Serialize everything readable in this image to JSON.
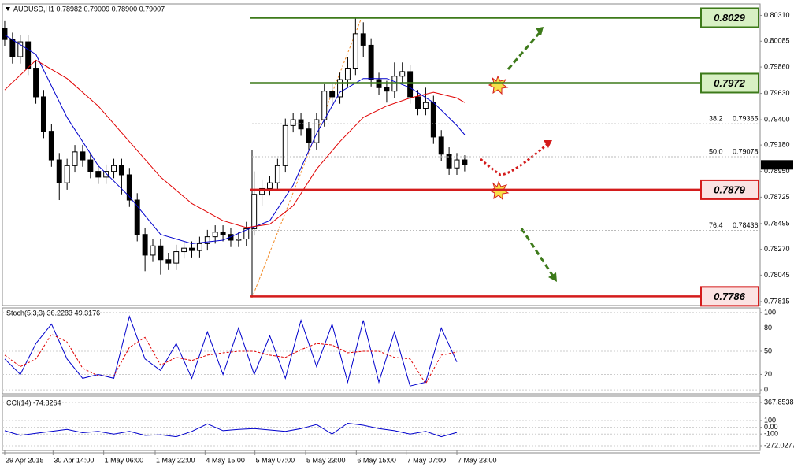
{
  "chart_data": [
    {
      "type": "candlestick",
      "header": "AUDUSD,H1  0.78982 0.79009 0.78900 0.79007",
      "xlim": [
        -0.3,
        96.9
      ],
      "ylim": [
        0.7778,
        0.8041
      ],
      "yticks": [
        {
          "value": 0.8031,
          "label": "0.80310"
        },
        0.80085,
        {
          "value": 0.7986,
          "label": "0.79860"
        },
        {
          "value": 0.7963,
          "label": "0.79630"
        },
        {
          "value": 0.794,
          "label": "0.79400"
        },
        {
          "value": 0.7918,
          "label": "0.79180"
        },
        {
          "value": 0.7895,
          "label": "0.78950"
        },
        0.78725,
        0.78495,
        {
          "value": 0.7827,
          "label": "0.78270"
        },
        0.78045,
        0.77815
      ],
      "xticks": [
        {
          "value": 0,
          "label": "29 Apr 2015"
        },
        {
          "value": 6.2,
          "label": "30 Apr 14:00"
        },
        {
          "value": 12.7,
          "label": "1 May 06:00"
        },
        {
          "value": 19.3,
          "label": "1 May 22:00"
        },
        {
          "value": 25.7,
          "label": "4 May 15:00"
        },
        {
          "value": 32.1,
          "label": "5 May 07:00"
        },
        {
          "value": 38.6,
          "label": "5 May 23:00"
        },
        {
          "value": 45.1,
          "label": "6 May 15:00"
        },
        {
          "value": 51.5,
          "label": "7 May 07:00"
        },
        {
          "value": 58,
          "label": "7 May 23:00"
        }
      ],
      "candles": [
        [
          0.802,
          0.8026,
          0.8004,
          0.801
        ],
        [
          0.801,
          0.8016,
          0.7989,
          0.7995
        ],
        [
          0.7995,
          0.8014,
          0.7989,
          0.8008
        ],
        [
          0.8008,
          0.8014,
          0.7979,
          0.7985
        ],
        [
          0.7985,
          0.7991,
          0.7954,
          0.796
        ],
        [
          0.796,
          0.7966,
          0.7924,
          0.793
        ],
        [
          0.793,
          0.7936,
          0.7899,
          0.7905
        ],
        [
          0.7905,
          0.7911,
          0.787,
          0.7885
        ],
        [
          0.7885,
          0.7906,
          0.7879,
          0.79
        ],
        [
          0.79,
          0.7918,
          0.7894,
          0.7912
        ],
        [
          0.7912,
          0.7918,
          0.7899,
          0.7905
        ],
        [
          0.7905,
          0.7911,
          0.7889,
          0.7895
        ],
        [
          0.7895,
          0.7901,
          0.7884,
          0.789
        ],
        [
          0.789,
          0.7901,
          0.7884,
          0.7895
        ],
        [
          0.7895,
          0.7906,
          0.7889,
          0.79
        ],
        [
          0.79,
          0.7906,
          0.7875,
          0.7892
        ],
        [
          0.7892,
          0.7898,
          0.7864,
          0.787
        ],
        [
          0.787,
          0.7876,
          0.7834,
          0.784
        ],
        [
          0.784,
          0.7846,
          0.7808,
          0.7822
        ],
        [
          0.7822,
          0.7836,
          0.7816,
          0.783
        ],
        [
          0.783,
          0.7836,
          0.7805,
          0.7818
        ],
        [
          0.7818,
          0.7824,
          0.7809,
          0.7815
        ],
        [
          0.7815,
          0.7831,
          0.7809,
          0.7825
        ],
        [
          0.7825,
          0.7834,
          0.7819,
          0.7828
        ],
        [
          0.7828,
          0.7834,
          0.782,
          0.7826
        ],
        [
          0.7826,
          0.7838,
          0.782,
          0.7832
        ],
        [
          0.7832,
          0.7844,
          0.7826,
          0.7838
        ],
        [
          0.7838,
          0.7848,
          0.7832,
          0.7842
        ],
        [
          0.7842,
          0.7848,
          0.7834,
          0.784
        ],
        [
          0.784,
          0.7846,
          0.7829,
          0.7835
        ],
        [
          0.7835,
          0.7842,
          0.7829,
          0.7836
        ],
        [
          0.7836,
          0.7851,
          0.783,
          0.7845
        ],
        [
          0.7845,
          0.7895,
          0.7839,
          0.7875
        ],
        [
          0.7875,
          0.7888,
          0.7865,
          0.788
        ],
        [
          0.788,
          0.7891,
          0.7874,
          0.7885
        ],
        [
          0.7885,
          0.7906,
          0.7879,
          0.79
        ],
        [
          0.79,
          0.7941,
          0.7894,
          0.7935
        ],
        [
          0.7935,
          0.7946,
          0.7929,
          0.794
        ],
        [
          0.794,
          0.7946,
          0.7926,
          0.7932
        ],
        [
          0.7932,
          0.7938,
          0.7914,
          0.792
        ],
        [
          0.792,
          0.7946,
          0.7914,
          0.794
        ],
        [
          0.794,
          0.7971,
          0.7934,
          0.7965
        ],
        [
          0.7965,
          0.7971,
          0.7954,
          0.796
        ],
        [
          0.796,
          0.7981,
          0.7954,
          0.7975
        ],
        [
          0.7975,
          0.7995,
          0.7969,
          0.7985
        ],
        [
          0.7985,
          0.803,
          0.7979,
          0.8015
        ],
        [
          0.8015,
          0.8025,
          0.7995,
          0.8005
        ],
        [
          0.8005,
          0.8011,
          0.7969,
          0.7975
        ],
        [
          0.7975,
          0.7981,
          0.7962,
          0.7968
        ],
        [
          0.7968,
          0.7974,
          0.7955,
          0.7965
        ],
        [
          0.7965,
          0.799,
          0.7959,
          0.7978
        ],
        [
          0.7978,
          0.799,
          0.7972,
          0.7982
        ],
        [
          0.7982,
          0.7988,
          0.7954,
          0.796
        ],
        [
          0.796,
          0.7966,
          0.7944,
          0.795
        ],
        [
          0.795,
          0.7968,
          0.7944,
          0.7955
        ],
        [
          0.7955,
          0.7961,
          0.7919,
          0.7925
        ],
        [
          0.7925,
          0.7931,
          0.7904,
          0.791
        ],
        [
          0.791,
          0.7916,
          0.7892,
          0.7898
        ],
        [
          0.7898,
          0.7911,
          0.7892,
          0.7905
        ],
        [
          0.7905,
          0.7909,
          0.7895,
          0.7901
        ]
      ],
      "x": [
        0,
        4,
        8,
        12,
        16,
        20,
        24,
        28,
        31,
        34,
        37,
        40,
        43,
        46,
        49,
        52,
        55,
        58,
        59
      ],
      "series": [
        {
          "color": "#0000cc",
          "values": [
            0.8014,
            0.7997,
            0.7942,
            0.79,
            0.7873,
            0.784,
            0.7832,
            0.7835,
            0.7844,
            0.7852,
            0.7883,
            0.7928,
            0.7964,
            0.7976,
            0.7976,
            0.7968,
            0.7955,
            0.7935,
            0.7927
          ]
        },
        {
          "color": "#e00000",
          "values": [
            0.7966,
            0.7992,
            0.7976,
            0.7952,
            0.7921,
            0.789,
            0.7867,
            0.7852,
            0.7846,
            0.7849,
            0.7865,
            0.7897,
            0.7921,
            0.7942,
            0.7952,
            0.7959,
            0.7964,
            0.7959,
            0.7955
          ]
        }
      ],
      "fib": [
        {
          "level": 38.2,
          "price": 0.79365
        },
        {
          "level": {
            "value": 50,
            "label": "50.0"
          },
          "price": 0.79078
        },
        {
          "level": 76.4,
          "price": 0.78436
        }
      ],
      "levels": [
        {
          "value": 0.8029,
          "color": "#3d7a1a",
          "fill": "#d8f0c4"
        },
        {
          "value": 0.7972,
          "color": "#3d7a1a",
          "fill": "#d8f0c4"
        },
        {
          "value": 0.7879,
          "color": "#d41c1c",
          "fill": "#fbe3e3"
        },
        {
          "value": 0.7786,
          "color": "#d41c1c",
          "fill": "#fbe3e3"
        }
      ],
      "last_price": 0.79007
    },
    {
      "type": "line",
      "title": "Stoch(5,3,3) 36.2283 49.3176",
      "grid": true,
      "ylim": [
        -5,
        106
      ],
      "yticks": [
        100,
        80,
        50,
        20,
        0
      ],
      "x": [
        0,
        2,
        4,
        6,
        8,
        10,
        12,
        14,
        16,
        18,
        20,
        22,
        24,
        26,
        28,
        30,
        32,
        34,
        36,
        38,
        40,
        42,
        44,
        46,
        48,
        50,
        52,
        54,
        56,
        58
      ],
      "series": [
        {
          "color": "#0000cc",
          "values": [
            40,
            20,
            60,
            85,
            40,
            15,
            20,
            15,
            95,
            40,
            25,
            60,
            15,
            75,
            20,
            80,
            20,
            70,
            15,
            90,
            30,
            85,
            10,
            90,
            10,
            75,
            5,
            10,
            80,
            36
          ]
        },
        {
          "color": "#e00000",
          "dash": "3,2",
          "values": [
            45,
            30,
            40,
            72,
            62,
            28,
            18,
            18,
            55,
            68,
            32,
            42,
            38,
            45,
            48,
            50,
            50,
            45,
            42,
            52,
            60,
            58,
            48,
            50,
            50,
            42,
            40,
            8,
            45,
            49
          ]
        }
      ]
    },
    {
      "type": "line",
      "title": "CCI(14) -74.8264",
      "grid": true,
      "ylim": [
        -342,
        461
      ],
      "yticks": [
        367.8538,
        100,
        {
          "value": 0,
          "label": "0.00"
        },
        -100,
        -272.0277
      ],
      "x": [
        0,
        2,
        4,
        6,
        8,
        10,
        12,
        14,
        16,
        18,
        20,
        22,
        24,
        26,
        28,
        30,
        32,
        34,
        36,
        38,
        40,
        42,
        44,
        46,
        48,
        50,
        52,
        54,
        56,
        58
      ],
      "series": [
        {
          "color": "#0000cc",
          "values": [
            -50,
            -120,
            -90,
            -60,
            -30,
            -80,
            -60,
            -100,
            -60,
            -120,
            -110,
            -140,
            -60,
            50,
            -50,
            -30,
            -20,
            -40,
            -60,
            -20,
            40,
            -100,
            60,
            30,
            -20,
            -50,
            -100,
            -60,
            -140,
            -75
          ]
        }
      ]
    }
  ]
}
